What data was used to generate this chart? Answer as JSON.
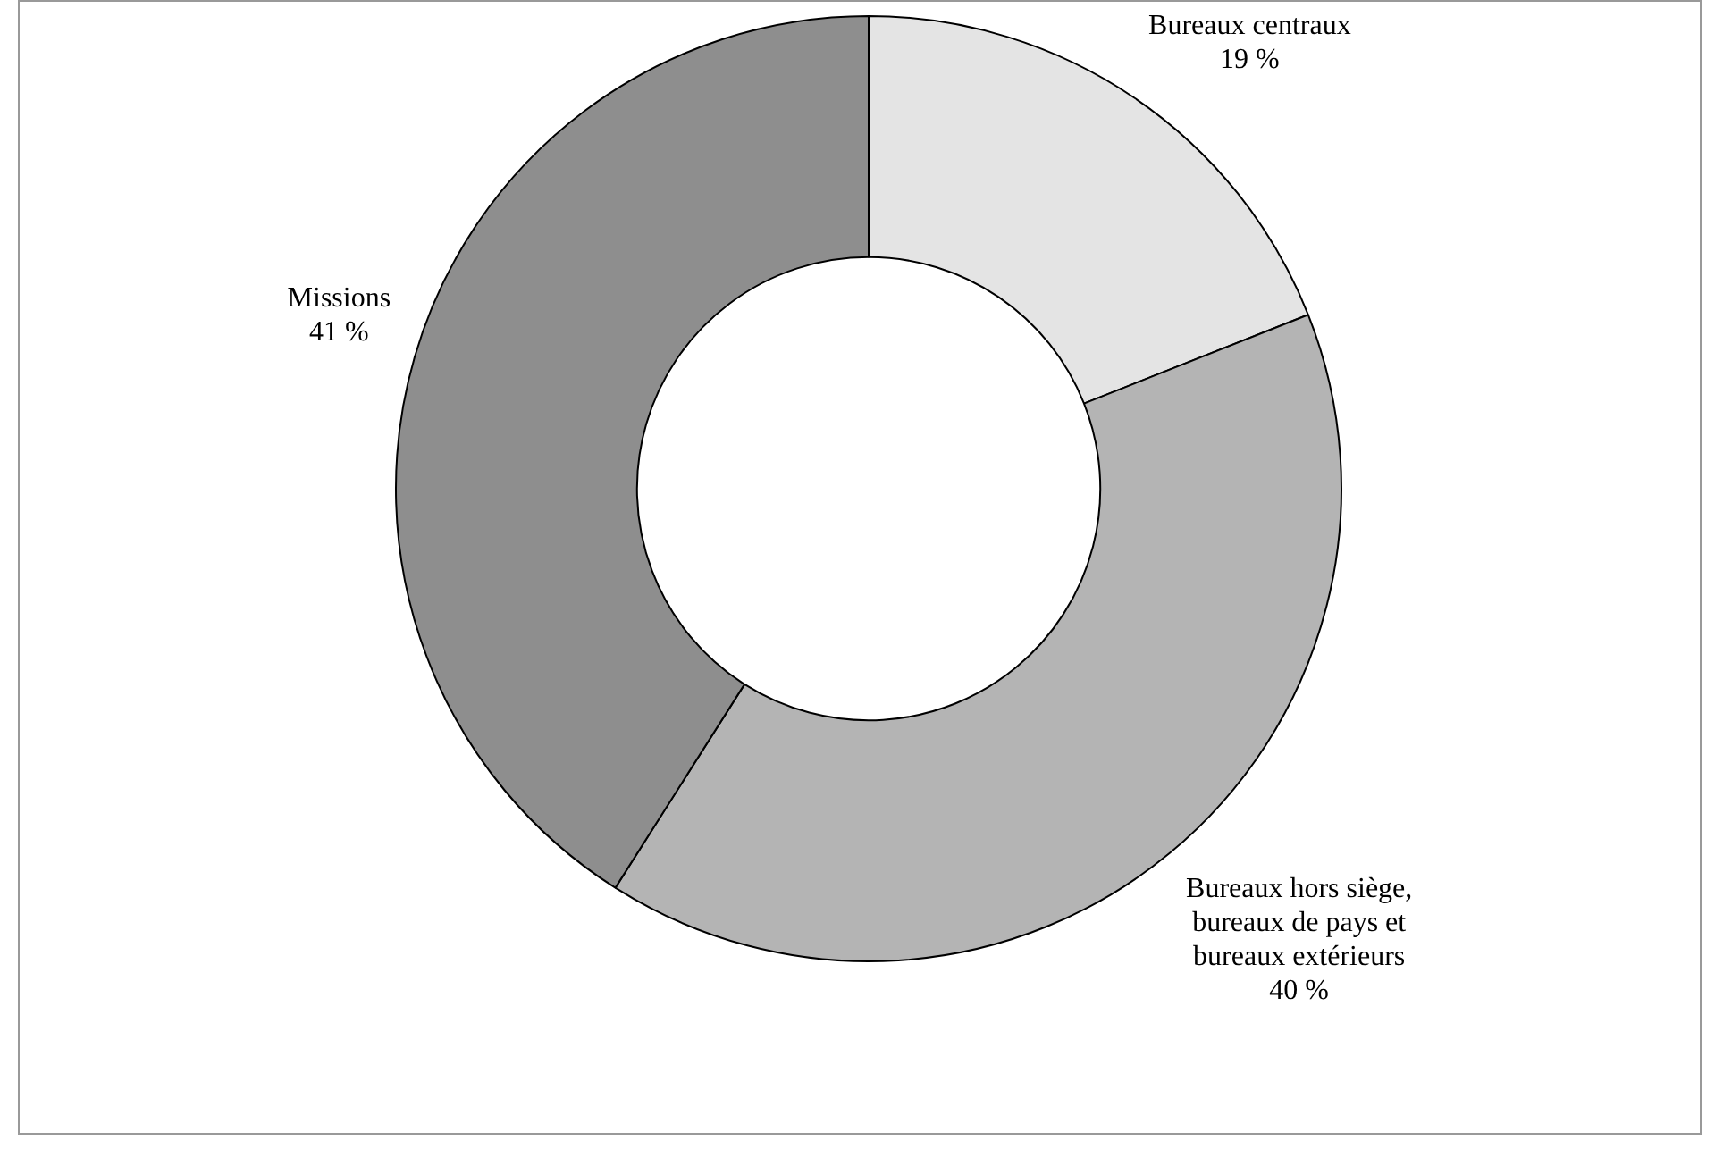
{
  "chart_data": {
    "type": "donut",
    "categories": [
      "Bureaux centraux",
      "Bureaux hors siège, bureaux de pays et bureaux extérieurs",
      "Missions"
    ],
    "values": [
      19,
      40,
      41
    ],
    "value_labels": [
      "19 %",
      "40 %",
      "41 %"
    ],
    "colors": [
      "#e4e4e4",
      "#b4b4b4",
      "#8e8e8e"
    ],
    "legend": false
  }
}
